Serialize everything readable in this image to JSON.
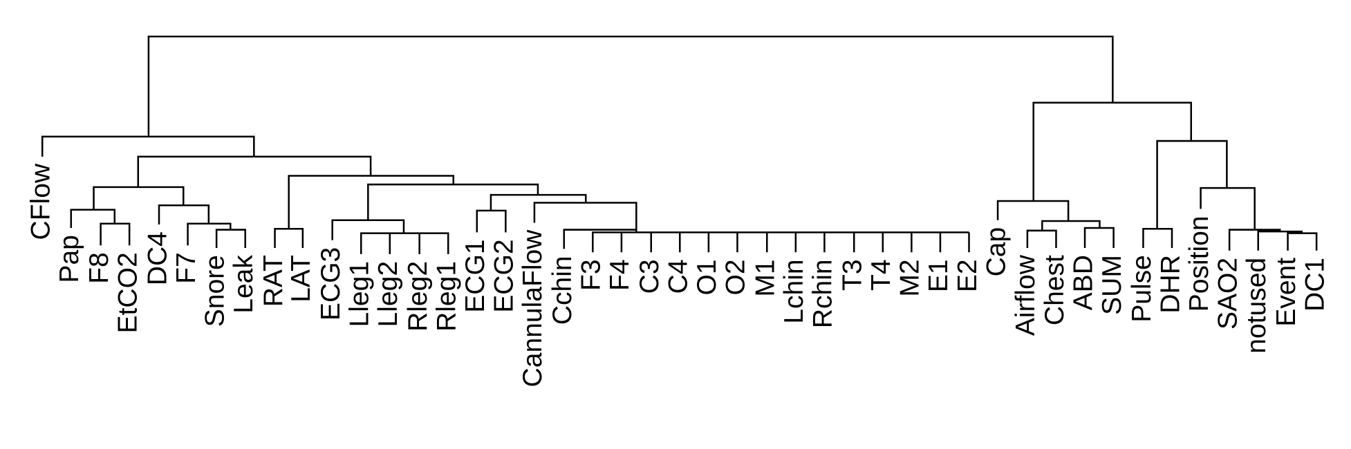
{
  "leaves": [
    "CFlow",
    "Pap",
    "F8",
    "EtCO2",
    "DC4",
    "F7",
    "Snore",
    "Leak",
    "RAT",
    "LAT",
    "ECG3",
    "Lleg1",
    "Lleg2",
    "Rleg2",
    "Rleg1",
    "ECG1",
    "ECG2",
    "CannulaFlow",
    "Cchin",
    "F3",
    "F4",
    "C3",
    "C4",
    "O1",
    "O2",
    "M1",
    "Lchin",
    "Rchin",
    "T3",
    "T4",
    "M2",
    "E1",
    "E2",
    "Cap",
    "Airflow",
    "Chest",
    "ABD",
    "SUM",
    "Pulse",
    "DHR",
    "Position",
    "SAO2",
    "notused",
    "Event",
    "DC1"
  ]
}
